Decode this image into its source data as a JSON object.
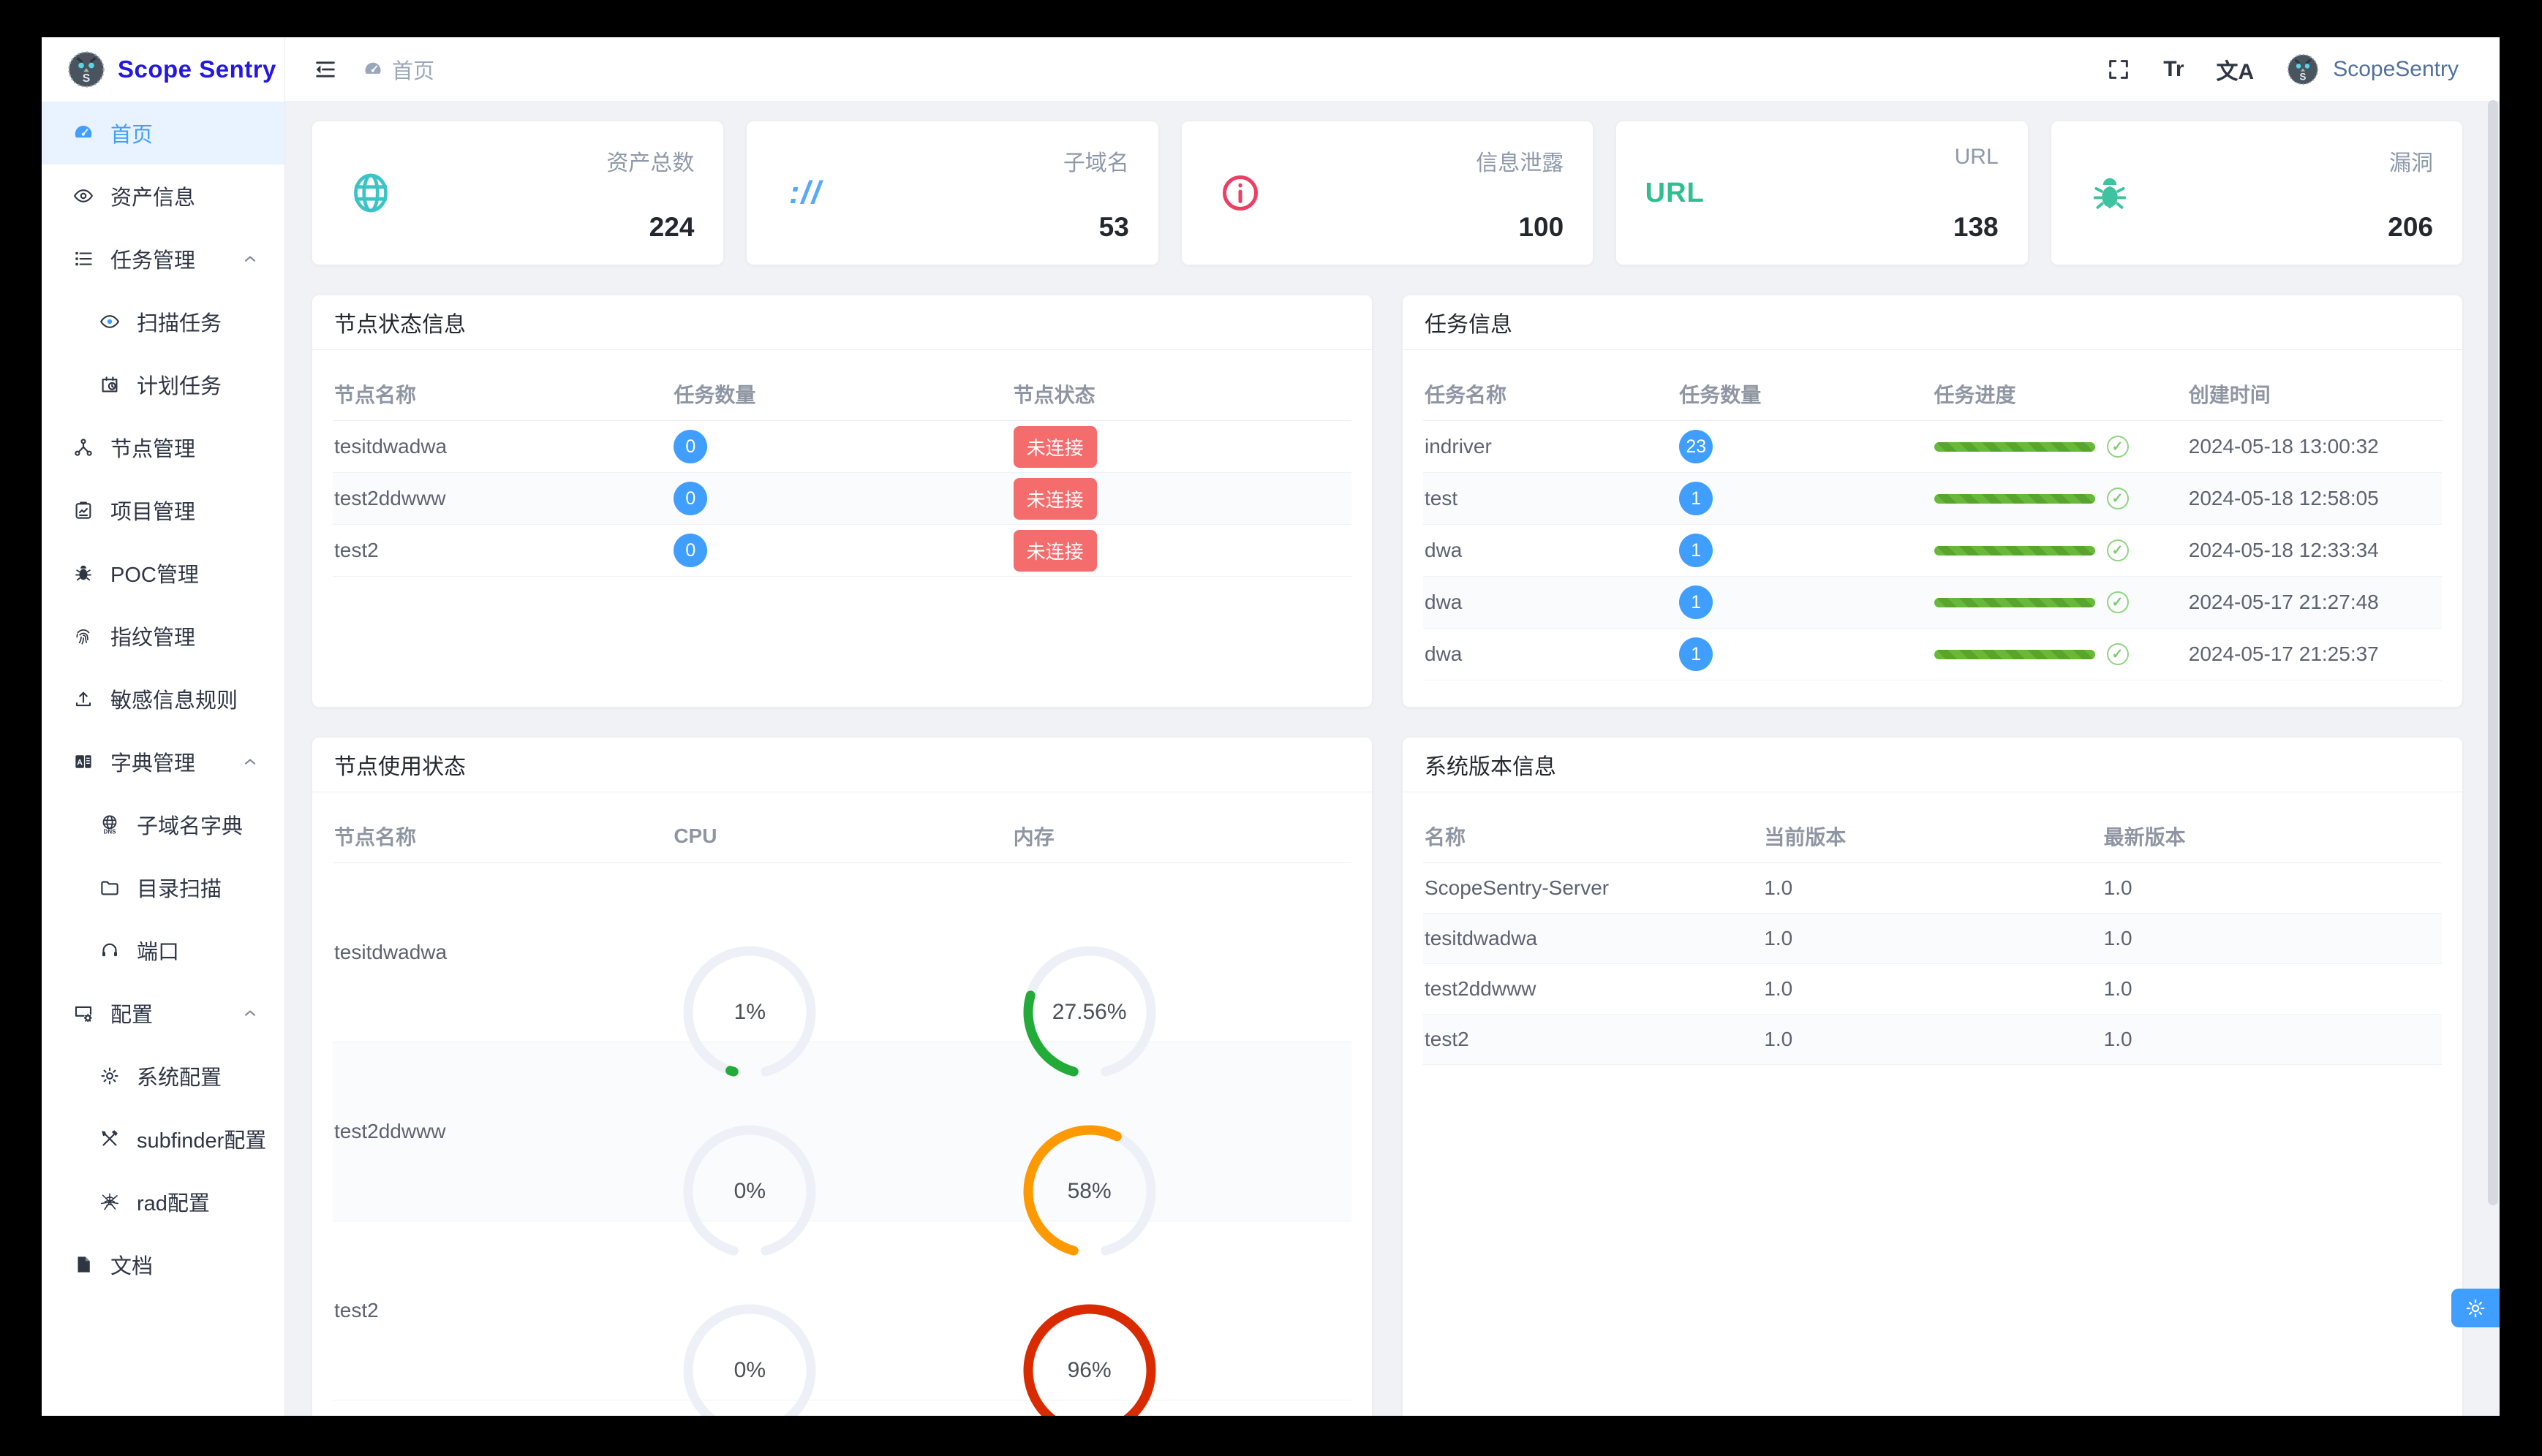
{
  "app": {
    "name": "Scope Sentry"
  },
  "sidebar": {
    "logo_title": "Scope Sentry",
    "items": [
      {
        "id": "home",
        "icon": "dashboard-icon",
        "label": "首页",
        "active": true
      },
      {
        "id": "asset-info",
        "icon": "eye-icon",
        "label": "资产信息"
      },
      {
        "id": "task-mgmt",
        "icon": "list-icon",
        "label": "任务管理",
        "arrow": true
      },
      {
        "id": "scan-tasks",
        "icon": "scan-eye-icon",
        "label": "扫描任务",
        "sub": true
      },
      {
        "id": "scheduled-tasks",
        "icon": "calendar-clock-icon",
        "label": "计划任务",
        "sub": true
      },
      {
        "id": "node-mgmt",
        "icon": "nodes-icon",
        "label": "节点管理"
      },
      {
        "id": "project-mgmt",
        "icon": "clipboard-icon",
        "label": "项目管理"
      },
      {
        "id": "poc-mgmt",
        "icon": "bug-icon",
        "label": "POC管理"
      },
      {
        "id": "fingerprint-mgmt",
        "icon": "fingerprint-icon",
        "label": "指纹管理"
      },
      {
        "id": "sensitive-rules",
        "icon": "upload-icon",
        "label": "敏感信息规则"
      },
      {
        "id": "dict-mgmt",
        "icon": "dictionary-icon",
        "label": "字典管理",
        "arrow": true
      },
      {
        "id": "subdomain-dict",
        "icon": "dns-globe-icon",
        "label": "子域名字典",
        "sub": true
      },
      {
        "id": "dir-scan",
        "icon": "folder-icon",
        "label": "目录扫描",
        "sub": true
      },
      {
        "id": "ports",
        "icon": "headset-icon",
        "label": "端口",
        "sub": true
      },
      {
        "id": "config",
        "icon": "monitor-gear-icon",
        "label": "配置",
        "arrow": true
      },
      {
        "id": "system-config",
        "icon": "gear-icon",
        "label": "系统配置",
        "sub": true
      },
      {
        "id": "subfinder-config",
        "icon": "tools-icon",
        "label": "subfinder配置",
        "sub": true
      },
      {
        "id": "rad-config",
        "icon": "spider-icon",
        "label": "rad配置",
        "sub": true
      },
      {
        "id": "docs",
        "icon": "document-icon",
        "label": "文档"
      }
    ]
  },
  "header": {
    "breadcrumb_label": "首页",
    "font_tool": "Tr",
    "translate_tool": "文A",
    "user": "ScopeSentry"
  },
  "stat_cards": [
    {
      "id": "assets-total",
      "icon": "globe-stat-icon",
      "color": "#3bc4c6",
      "label": "资产总数",
      "value": "224"
    },
    {
      "id": "subdomains",
      "icon": "protocol-icon",
      "color": "#58a8fb",
      "label": "子域名",
      "value": "53",
      "icon_text": "://"
    },
    {
      "id": "info-leaks",
      "icon": "info-circle-icon",
      "color": "#ee3f62",
      "label": "信息泄露",
      "value": "100"
    },
    {
      "id": "urls",
      "icon": "url-text-icon",
      "color": "#2fbf8f",
      "label": "URL",
      "value": "138",
      "icon_text": "URL"
    },
    {
      "id": "vulns",
      "icon": "bug-filled-icon",
      "color": "#3fc2a2",
      "label": "漏洞",
      "value": "206"
    }
  ],
  "panels": {
    "node_status": {
      "title": "节点状态信息",
      "columns": [
        "节点名称",
        "任务数量",
        "节点状态"
      ],
      "rows": [
        {
          "name": "tesitdwadwa",
          "count": "0",
          "status": "未连接"
        },
        {
          "name": "test2ddwww",
          "count": "0",
          "status": "未连接"
        },
        {
          "name": "test2",
          "count": "0",
          "status": "未连接"
        }
      ]
    },
    "task_info": {
      "title": "任务信息",
      "columns": [
        "任务名称",
        "任务数量",
        "任务进度",
        "创建时间"
      ],
      "rows": [
        {
          "name": "indriver",
          "count": "23",
          "progress": 100,
          "created": "2024-05-18 13:00:32"
        },
        {
          "name": "test",
          "count": "1",
          "progress": 100,
          "created": "2024-05-18 12:58:05"
        },
        {
          "name": "dwa",
          "count": "1",
          "progress": 100,
          "created": "2024-05-18 12:33:34"
        },
        {
          "name": "dwa",
          "count": "1",
          "progress": 100,
          "created": "2024-05-17 21:27:48"
        },
        {
          "name": "dwa",
          "count": "1",
          "progress": 100,
          "created": "2024-05-17 21:25:37"
        }
      ]
    },
    "node_usage": {
      "title": "节点使用状态",
      "columns": [
        "节点名称",
        "CPU",
        "内存"
      ],
      "rows": [
        {
          "name": "tesitdwadwa",
          "cpu": {
            "pct": 1,
            "label": "1%",
            "color": "#22ab39"
          },
          "mem": {
            "pct": 27.56,
            "label": "27.56%",
            "color": "#22ab39"
          }
        },
        {
          "name": "test2ddwww",
          "cpu": {
            "pct": 0,
            "label": "0%",
            "color": "#22ab39"
          },
          "mem": {
            "pct": 58,
            "label": "58%",
            "color": "#ff9900"
          }
        },
        {
          "name": "test2",
          "cpu": {
            "pct": 0,
            "label": "0%",
            "color": "#22ab39"
          },
          "mem": {
            "pct": 96,
            "label": "96%",
            "color": "#da2a00"
          }
        }
      ]
    },
    "version_info": {
      "title": "系统版本信息",
      "columns": [
        "名称",
        "当前版本",
        "最新版本"
      ],
      "rows": [
        {
          "name": "ScopeSentry-Server",
          "current": "1.0",
          "latest": "1.0"
        },
        {
          "name": "tesitdwadwa",
          "current": "1.0",
          "latest": "1.0"
        },
        {
          "name": "test2ddwww",
          "current": "1.0",
          "latest": "1.0"
        },
        {
          "name": "test2",
          "current": "1.0",
          "latest": "1.0"
        }
      ]
    }
  },
  "gauge": {
    "start_angle": 195,
    "total_sweep": 330,
    "track_color": "#edf0f7"
  },
  "progress_check_glyph": "✓",
  "colors": {
    "primary": "#409eff",
    "active_bg": "#e9f3ff",
    "danger_badge": "#f56c6c",
    "progress_green": "#67b93a",
    "logo_blue": "#2318e0",
    "content_bg": "#f0f2f5"
  }
}
